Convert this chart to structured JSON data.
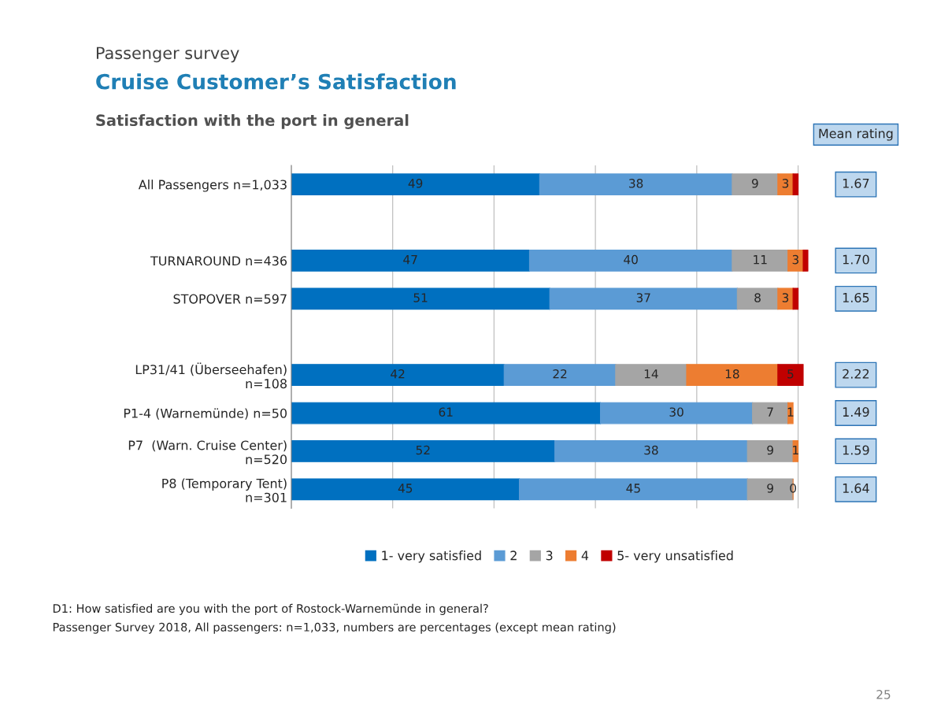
{
  "chart_data": {
    "type": "bar",
    "orientation": "horizontal",
    "stacked": true,
    "title": "Cruise Customer’s Satisfaction",
    "subtitle": "Satisfaction with the port in general",
    "categories": [
      "All Passengers n=1,033",
      null,
      "TURNAROUND n=436",
      "STOPOVER n=597",
      null,
      "LP31/41 (Überseehafen)\nn=108",
      "P1-4 (Warnemünde) n=50",
      "P7  (Warn. Cruise Center)\nn=520",
      "P8 (Temporary Tent)\nn=301"
    ],
    "series": [
      {
        "name": "1- very satisfied",
        "color": "#0070c0",
        "values": [
          49,
          null,
          47,
          51,
          null,
          42,
          61,
          52,
          45
        ],
        "value_labels": [
          "49",
          null,
          "47",
          "51",
          null,
          "42",
          "61",
          "52",
          "45"
        ]
      },
      {
        "name": "2",
        "color": "#5b9bd5",
        "values": [
          38,
          null,
          40,
          37,
          null,
          22,
          30,
          38,
          45
        ],
        "value_labels": [
          "38",
          null,
          "40",
          "37",
          null,
          "22",
          "30",
          "38",
          "45"
        ]
      },
      {
        "name": "3",
        "color": "#a5a5a5",
        "values": [
          9,
          null,
          11,
          8,
          null,
          14,
          7,
          9,
          9
        ],
        "value_labels": [
          "9",
          null,
          "11",
          "8",
          null,
          "14",
          "7",
          "9",
          "9"
        ]
      },
      {
        "name": "4",
        "color": "#ed7d31",
        "values": [
          3,
          null,
          3,
          3,
          null,
          18,
          1,
          1,
          0
        ],
        "value_labels": [
          "3",
          null,
          "3",
          "3",
          null,
          "18",
          "1",
          "1",
          "0"
        ]
      },
      {
        "name": "5- very unsatisfied",
        "color": "#c00000",
        "values": [
          1,
          null,
          1,
          1,
          null,
          5,
          null,
          null,
          null
        ],
        "value_labels": [
          null,
          null,
          null,
          null,
          null,
          "5",
          null,
          null,
          null
        ]
      }
    ],
    "xlim": [
      0,
      102
    ],
    "xticks": [
      {
        "value": 0,
        "label": null
      },
      {
        "value": 20,
        "label": null
      },
      {
        "value": 40,
        "label": null
      },
      {
        "value": 60,
        "label": null
      },
      {
        "value": 80,
        "label": null
      },
      {
        "value": 100,
        "label": null
      }
    ],
    "tick_labels": "y",
    "grid": "x",
    "legend": "bottom",
    "annotations": [
      "Passenger survey",
      "Mean rating",
      "1.67",
      "1.70",
      "1.65",
      "2.22",
      "1.49",
      "1.59",
      "1.64",
      "D1: How satisfied are you with the port of Rostock-Warnemünde in general?",
      "Passenger Survey 2018, All passengers: n=1,033, numbers are percentages (except mean rating)",
      "25"
    ]
  }
}
